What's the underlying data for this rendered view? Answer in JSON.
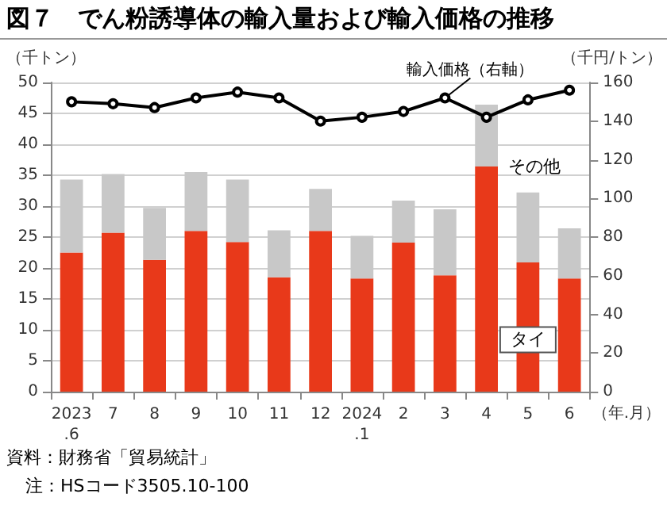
{
  "chart_data": {
    "type": "bar",
    "title": "図７　でん粉誘導体の輸入量および輸入価格の推移",
    "ylabel": "（千トン）",
    "y2label": "（千円/トン）",
    "xlabel": "（年.月）",
    "categories": [
      "2023\n.6",
      "7",
      "8",
      "9",
      "10",
      "11",
      "12",
      "2024\n.1",
      "2",
      "3",
      "4",
      "5",
      "6"
    ],
    "stacked": true,
    "series": [
      {
        "name": "タイ",
        "color": "#e8391a",
        "values": [
          22.5,
          25.7,
          21.3,
          26.0,
          24.2,
          18.5,
          26.0,
          18.3,
          24.1,
          18.8,
          36.4,
          20.9,
          18.3
        ]
      },
      {
        "name": "その他",
        "color": "#c8c8c8",
        "values": [
          11.8,
          9.5,
          8.4,
          9.5,
          10.1,
          7.6,
          6.8,
          6.9,
          6.8,
          10.7,
          10.0,
          11.3,
          8.1
        ]
      },
      {
        "name": "輸入価格（右軸）",
        "type": "line",
        "axis": "y2",
        "color": "#000000",
        "values": [
          150,
          149,
          147,
          152,
          155,
          152,
          140,
          142,
          145,
          152,
          142,
          151,
          156
        ]
      }
    ],
    "ylim": [
      0,
      50
    ],
    "yticks": [
      0,
      5,
      10,
      15,
      20,
      25,
      30,
      35,
      40,
      45,
      50
    ],
    "y2lim": [
      0,
      160
    ],
    "y2ticks": [
      0,
      20,
      40,
      60,
      80,
      100,
      120,
      140,
      160
    ],
    "grid": "y",
    "legend": false,
    "marker": "circle",
    "line_style": "solid",
    "annotations": [
      "資料：財務省「貿易統計」",
      "注：HSコード3505.10-100"
    ]
  }
}
